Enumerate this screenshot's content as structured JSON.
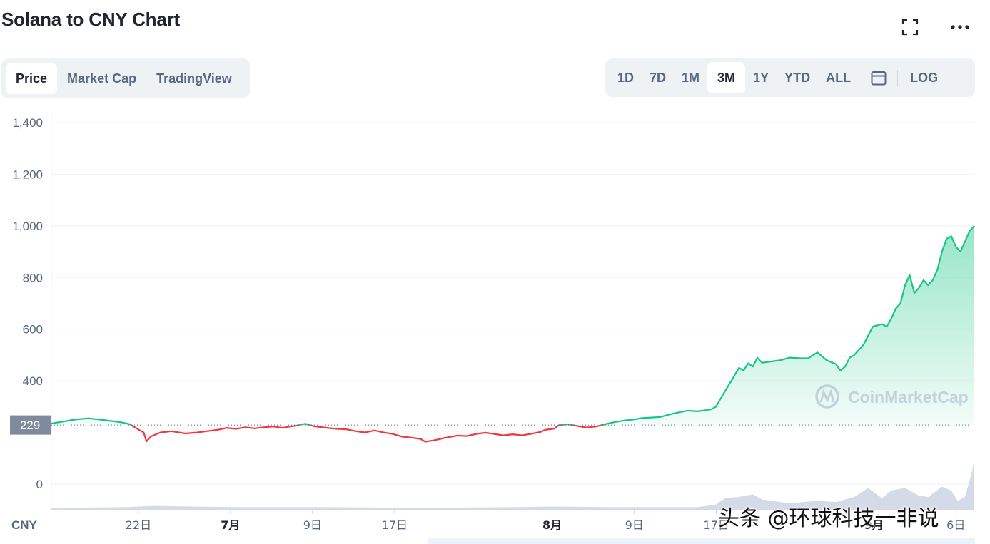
{
  "title": "Solana to CNY Chart",
  "header_icons": [
    "fullscreen-icon",
    "more-icon"
  ],
  "tabs": [
    {
      "label": "Price",
      "active": true
    },
    {
      "label": "Market Cap",
      "active": false
    },
    {
      "label": "TradingView",
      "active": false
    }
  ],
  "ranges": [
    {
      "label": "1D",
      "active": false
    },
    {
      "label": "7D",
      "active": false
    },
    {
      "label": "1M",
      "active": false
    },
    {
      "label": "3M",
      "active": true
    },
    {
      "label": "1Y",
      "active": false
    },
    {
      "label": "YTD",
      "active": false
    },
    {
      "label": "ALL",
      "active": false
    }
  ],
  "log_label": "LOG",
  "overlay_text": "头条 @环球科技一非说",
  "colors": {
    "up": "#16c784",
    "down": "#ea3943",
    "grid": "#eff2f5",
    "axis_text": "#58667e",
    "price_badge": "#808a9d"
  },
  "chart_data": {
    "type": "line",
    "currency_label": "CNY",
    "current_price_label": "229",
    "reference_price": 229,
    "ylim": [
      0,
      1400
    ],
    "y_ticks": [
      0,
      400,
      600,
      800,
      1000,
      1200,
      1400
    ],
    "y_tick_labels": [
      "0",
      "400",
      "600",
      "800",
      "1,000",
      "1,200",
      "1,400"
    ],
    "x_ticks": [
      {
        "t": 0.0943,
        "label": "22日",
        "bold": false
      },
      {
        "t": 0.194,
        "label": "7月",
        "bold": true
      },
      {
        "t": 0.2829,
        "label": "9日",
        "bold": false
      },
      {
        "t": 0.3719,
        "label": "17日",
        "bold": false
      },
      {
        "t": 0.5426,
        "label": "8月",
        "bold": true
      },
      {
        "t": 0.6316,
        "label": "9日",
        "bold": false
      },
      {
        "t": 0.7205,
        "label": "17日",
        "bold": false
      },
      {
        "t": 0.8912,
        "label": "9月",
        "bold": true
      },
      {
        "t": 0.9801,
        "label": "6日",
        "bold": false
      }
    ],
    "series": [
      {
        "points": [
          [
            0.0,
            235
          ],
          [
            0.012,
            242
          ],
          [
            0.025,
            250
          ],
          [
            0.04,
            255
          ],
          [
            0.06,
            247
          ],
          [
            0.075,
            240
          ],
          [
            0.085,
            232
          ],
          [
            0.095,
            210
          ],
          [
            0.1,
            200
          ],
          [
            0.103,
            165
          ],
          [
            0.108,
            185
          ],
          [
            0.118,
            200
          ],
          [
            0.13,
            205
          ],
          [
            0.145,
            196
          ],
          [
            0.158,
            200
          ],
          [
            0.168,
            205
          ],
          [
            0.18,
            210
          ],
          [
            0.19,
            218
          ],
          [
            0.2,
            214
          ],
          [
            0.21,
            220
          ],
          [
            0.22,
            216
          ],
          [
            0.23,
            220
          ],
          [
            0.24,
            223
          ],
          [
            0.25,
            218
          ],
          [
            0.26,
            224
          ],
          [
            0.265,
            226
          ],
          [
            0.27,
            230
          ],
          [
            0.275,
            234
          ],
          [
            0.285,
            224
          ],
          [
            0.3,
            217
          ],
          [
            0.31,
            214
          ],
          [
            0.32,
            212
          ],
          [
            0.33,
            205
          ],
          [
            0.34,
            200
          ],
          [
            0.35,
            208
          ],
          [
            0.36,
            200
          ],
          [
            0.37,
            194
          ],
          [
            0.38,
            184
          ],
          [
            0.39,
            180
          ],
          [
            0.4,
            175
          ],
          [
            0.405,
            164
          ],
          [
            0.415,
            170
          ],
          [
            0.425,
            178
          ],
          [
            0.44,
            188
          ],
          [
            0.45,
            186
          ],
          [
            0.46,
            194
          ],
          [
            0.47,
            199
          ],
          [
            0.48,
            194
          ],
          [
            0.49,
            189
          ],
          [
            0.5,
            193
          ],
          [
            0.51,
            189
          ],
          [
            0.52,
            195
          ],
          [
            0.53,
            202
          ],
          [
            0.535,
            210
          ],
          [
            0.545,
            215
          ],
          [
            0.55,
            229
          ],
          [
            0.56,
            232
          ],
          [
            0.57,
            225
          ],
          [
            0.58,
            219
          ],
          [
            0.59,
            223
          ],
          [
            0.6,
            232
          ],
          [
            0.61,
            240
          ],
          [
            0.62,
            246
          ],
          [
            0.63,
            250
          ],
          [
            0.64,
            256
          ],
          [
            0.65,
            258
          ],
          [
            0.66,
            260
          ],
          [
            0.67,
            270
          ],
          [
            0.68,
            278
          ],
          [
            0.69,
            285
          ],
          [
            0.7,
            282
          ],
          [
            0.71,
            287
          ],
          [
            0.715,
            290
          ],
          [
            0.72,
            300
          ],
          [
            0.725,
            330
          ],
          [
            0.73,
            360
          ],
          [
            0.74,
            420
          ],
          [
            0.745,
            450
          ],
          [
            0.75,
            440
          ],
          [
            0.755,
            468
          ],
          [
            0.76,
            455
          ],
          [
            0.765,
            490
          ],
          [
            0.77,
            470
          ],
          [
            0.78,
            475
          ],
          [
            0.79,
            480
          ],
          [
            0.8,
            490
          ],
          [
            0.81,
            488
          ],
          [
            0.82,
            487
          ],
          [
            0.83,
            510
          ],
          [
            0.84,
            480
          ],
          [
            0.85,
            465
          ],
          [
            0.855,
            440
          ],
          [
            0.86,
            455
          ],
          [
            0.865,
            490
          ],
          [
            0.87,
            500
          ],
          [
            0.875,
            520
          ],
          [
            0.88,
            540
          ],
          [
            0.89,
            610
          ],
          [
            0.9,
            620
          ],
          [
            0.905,
            610
          ],
          [
            0.91,
            640
          ],
          [
            0.915,
            680
          ],
          [
            0.92,
            700
          ],
          [
            0.925,
            770
          ],
          [
            0.93,
            810
          ],
          [
            0.935,
            740
          ],
          [
            0.94,
            760
          ],
          [
            0.945,
            790
          ],
          [
            0.95,
            770
          ],
          [
            0.955,
            790
          ],
          [
            0.96,
            830
          ],
          [
            0.965,
            900
          ],
          [
            0.97,
            950
          ],
          [
            0.975,
            960
          ],
          [
            0.98,
            920
          ],
          [
            0.985,
            900
          ],
          [
            0.99,
            940
          ],
          [
            0.995,
            980
          ],
          [
            1.0,
            1000
          ]
        ]
      }
    ]
  }
}
